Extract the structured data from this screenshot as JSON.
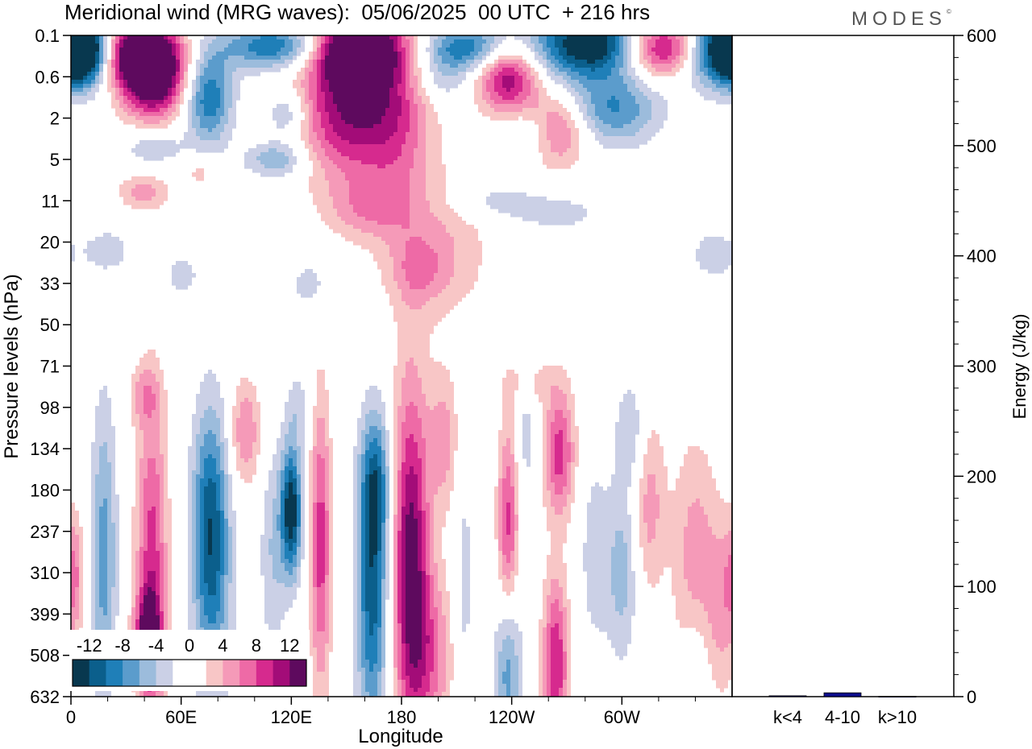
{
  "title": "Meridional wind (MRG waves):  05/06/2025  00 UTC  + 216 hrs",
  "brand": "MODES",
  "brand_mark": "©",
  "colors": {
    "neg": [
      "#08384f",
      "#0b5f8c",
      "#1f7fb8",
      "#5b9ccc",
      "#9cbcdc",
      "#cbd0e6"
    ],
    "pos": [
      "#f8c6c6",
      "#f59ab8",
      "#ee6aa6",
      "#d62a8e",
      "#a30c78",
      "#5e0a5e"
    ]
  },
  "chart_data": [
    {
      "type": "heatmap",
      "title": "Meridional wind (MRG waves):  05/06/2025  00 UTC  + 216 hrs",
      "xlabel": "Longitude",
      "ylabel": "Pressure levels (hPa)",
      "x_ticks": [
        "0",
        "60E",
        "120E",
        "180",
        "120W",
        "60W"
      ],
      "y_ticks": [
        "0.1",
        "0.6",
        "2",
        "5",
        "11",
        "20",
        "33",
        "50",
        "71",
        "98",
        "134",
        "180",
        "237",
        "310",
        "399",
        "508",
        "632"
      ],
      "colorbar_labels": [
        "-12",
        "-8",
        "-4",
        "0",
        "4",
        "8",
        "12"
      ],
      "levels": [
        -14,
        -12,
        -10,
        -8,
        -6,
        -4,
        -2,
        2,
        4,
        6,
        8,
        10,
        12,
        14
      ],
      "grid": false
    },
    {
      "type": "bar",
      "categories": [
        "k<4",
        "4-10",
        "k>10"
      ],
      "values": [
        0.8,
        3.5,
        0.3
      ],
      "ylabel": "Energy (J/kg)",
      "ylim": [
        0,
        600
      ],
      "y_ticks": [
        "0",
        "100",
        "200",
        "300",
        "400",
        "500",
        "600"
      ]
    }
  ]
}
